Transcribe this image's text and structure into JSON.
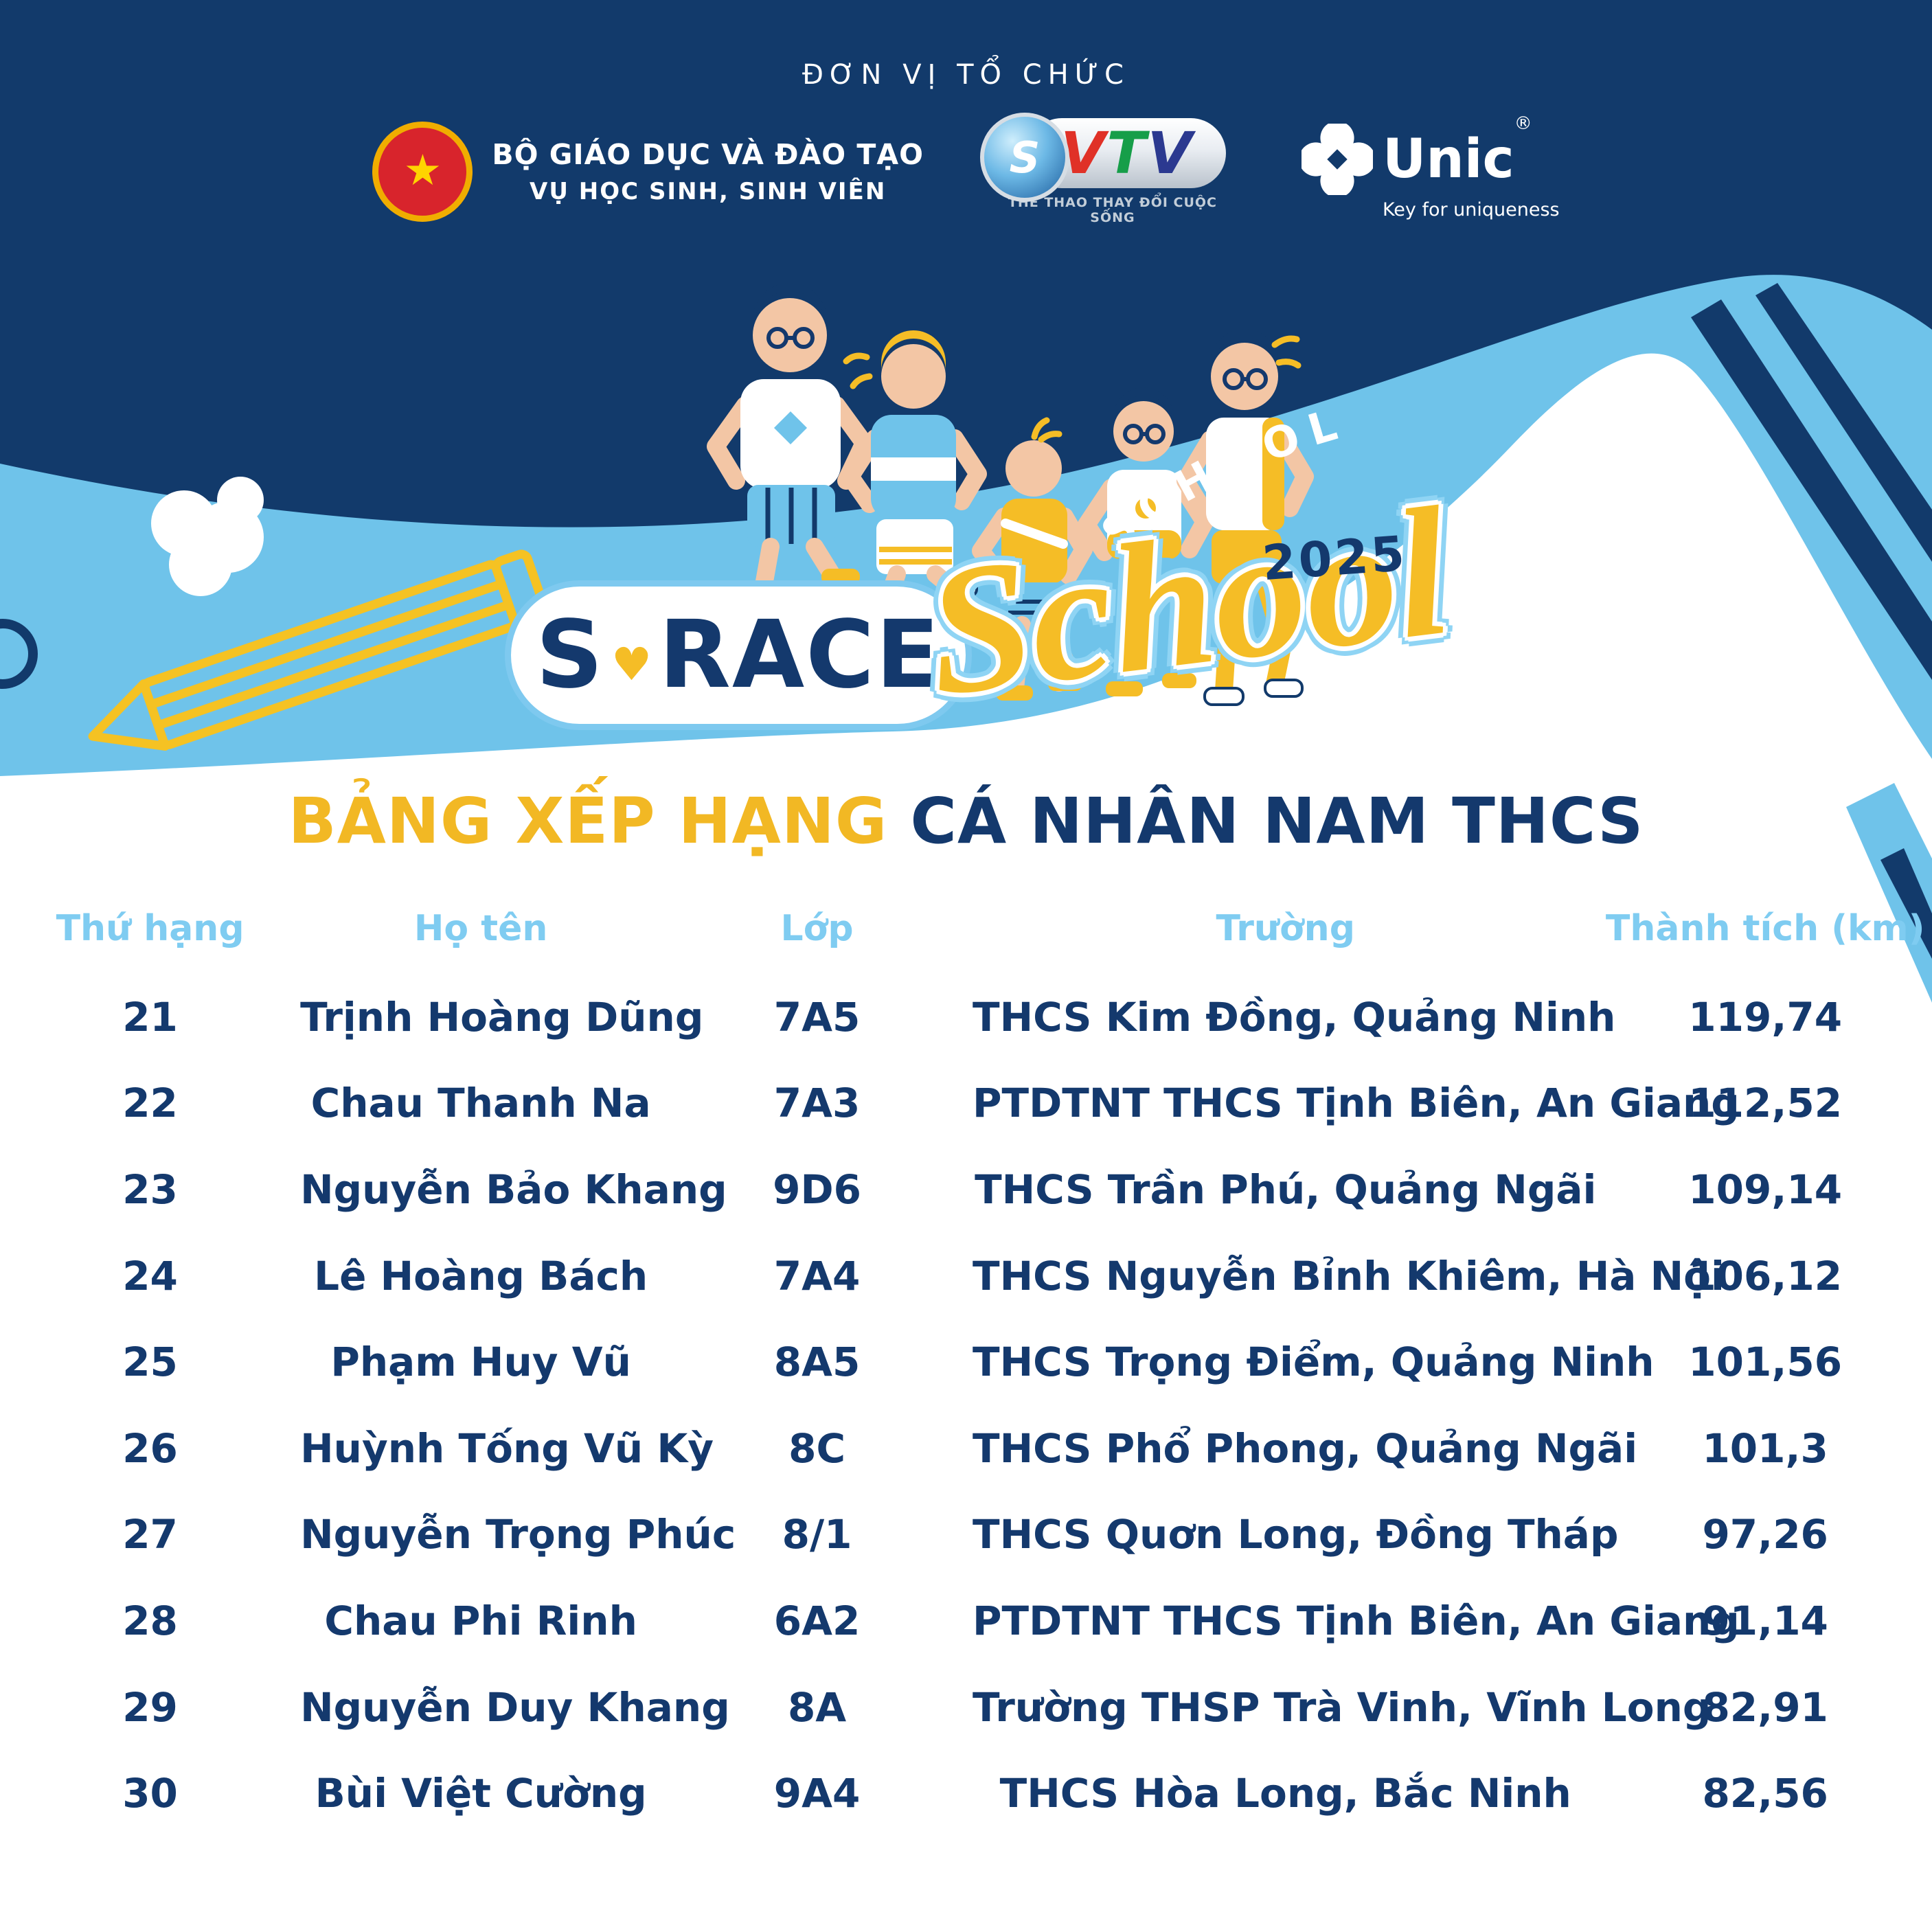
{
  "organizer": {
    "heading": "ĐƠN VỊ TỔ CHỨC",
    "moet_line1": "BỘ GIÁO DỤC VÀ ĐÀO TẠO",
    "moet_line2": "VỤ HỌC SINH, SINH VIÊN",
    "vtv_letters": [
      "V",
      "T",
      "V"
    ],
    "vtv_sphere_letter": "S",
    "vtv_tagline": "THỂ THAO THAY ĐỔI CUỘC SỐNG",
    "unic_name": "Unic",
    "unic_reg": "®",
    "unic_tagline": "Key for uniqueness"
  },
  "logo": {
    "s": "S",
    "heart": "♥",
    "race": "RACE",
    "school_script": "School",
    "school_arc": "SCHOOL",
    "year": "2025"
  },
  "title": {
    "part1": "BẢNG XẾP HẠNG ",
    "part2": "CÁ NHÂN NAM THCS"
  },
  "table": {
    "headers": [
      "Thứ hạng",
      "Họ tên",
      "Lớp",
      "Trường",
      "Thành tích (km)"
    ],
    "rows": [
      [
        "21",
        "Trịnh Hoàng Dũng",
        "7A5",
        "THCS Kim Đồng, Quảng Ninh",
        "119,74"
      ],
      [
        "22",
        "Chau Thanh Na",
        "7A3",
        "PTDTNT THCS Tịnh Biên, An Giang",
        "112,52"
      ],
      [
        "23",
        "Nguyễn Bảo Khang",
        "9D6",
        "THCS Trần Phú, Quảng Ngãi",
        "109,14"
      ],
      [
        "24",
        "Lê Hoàng Bách",
        "7A4",
        "THCS Nguyễn Bỉnh Khiêm, Hà Nội",
        "106,12"
      ],
      [
        "25",
        "Phạm Huy Vũ",
        "8A5",
        "THCS Trọng Điểm, Quảng Ninh",
        "101,56"
      ],
      [
        "26",
        "Huỳnh Tống Vũ Kỳ",
        "8C",
        "THCS Phổ Phong, Quảng Ngãi",
        "101,3"
      ],
      [
        "27",
        "Nguyễn Trọng Phúc",
        "8/1",
        "THCS Quơn Long, Đồng Tháp",
        "97,26"
      ],
      [
        "28",
        "Chau Phi Rinh",
        "6A2",
        "PTDTNT THCS Tịnh Biên, An Giang",
        "91,14"
      ],
      [
        "29",
        "Nguyễn Duy Khang",
        "8A",
        "Trường THSP Trà Vinh, Vĩnh Long",
        "82,91"
      ],
      [
        "30",
        "Bùi Việt Cường",
        "9A4",
        "THCS Hòa Long, Bắc Ninh",
        "82,56"
      ]
    ]
  },
  "colors": {
    "navy": "#14396d",
    "band_blue": "#6fc3ea",
    "header_blue": "#7fccf1",
    "yellow": "#f5bd26",
    "title_yellow": "#f2b824",
    "white": "#ffffff",
    "vtv_red": "#e03127",
    "vtv_green": "#169e49",
    "vtv_blue": "#2b3990",
    "emblem_red": "#d8242c",
    "emblem_gold": "#f0ad00"
  }
}
